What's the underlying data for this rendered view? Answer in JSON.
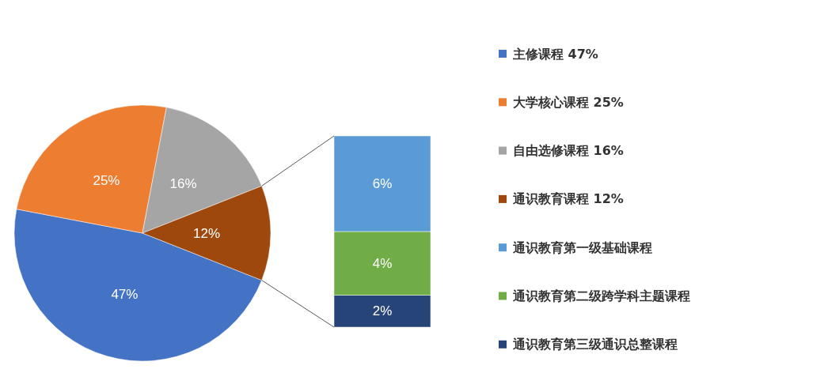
{
  "chart_data": [
    {
      "type": "pie",
      "categories": [
        "主修课程 47%",
        "大学核心课程 25%",
        "自由选修课程 16%",
        "通识教育课程 12%"
      ],
      "values": [
        47,
        25,
        16,
        12
      ],
      "value_labels": [
        "47%",
        "25%",
        "16%",
        "12%"
      ],
      "colors": [
        "#4472c4",
        "#ed7d31",
        "#a5a5a5",
        "#9e480e"
      ],
      "legend": "right"
    },
    {
      "type": "bar",
      "stacked": true,
      "categories": [
        null
      ],
      "series": [
        {
          "name": "通识教育第三级通识总整课程",
          "color": "#264478",
          "values": [
            2
          ],
          "value_labels": [
            "2%"
          ]
        },
        {
          "name": "通识教育第二级跨学科主题课程",
          "color": "#70ad47",
          "values": [
            4
          ],
          "value_labels": [
            "4%"
          ]
        },
        {
          "name": "通识教育第一级基础课程",
          "color": "#5b9bd5",
          "values": [
            6
          ],
          "value_labels": [
            "6%"
          ]
        }
      ],
      "legend": "right"
    }
  ]
}
